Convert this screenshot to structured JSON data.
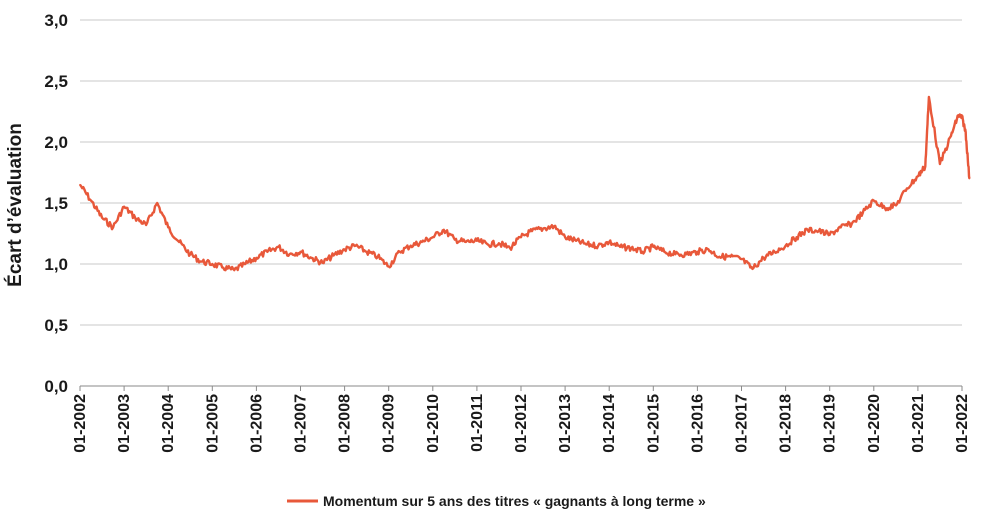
{
  "chart_data": {
    "type": "line",
    "title": "",
    "ylabel": "Écart d’évaluation",
    "xlabel": "",
    "ylim": [
      0,
      3.0
    ],
    "y_ticks": [
      {
        "value": 0,
        "label": "0,0"
      },
      {
        "value": 0.5,
        "label": "0,5"
      },
      {
        "value": 1.0,
        "label": "1,0"
      },
      {
        "value": 1.5,
        "label": "1,5"
      },
      {
        "value": 2.0,
        "label": "2,0"
      },
      {
        "value": 2.5,
        "label": "2,5"
      },
      {
        "value": 3.0,
        "label": "3,0"
      }
    ],
    "x_ticks": [
      "01-2002",
      "01-2003",
      "01-2004",
      "01-2005",
      "01-2006",
      "01-2007",
      "01-2008",
      "01-2009",
      "01-2010",
      "01-2011",
      "01-2012",
      "01-2013",
      "01-2014",
      "01-2015",
      "01-2016",
      "01-2017",
      "01-2018",
      "01-2019",
      "01-2020",
      "01-2021",
      "01-2022"
    ],
    "grid": true,
    "legend_position": "bottom-center",
    "series": [
      {
        "name": "Momentum sur 5 ans des titres « gagnants à long terme »",
        "color": "#E8583A",
        "x": [
          "01-2002",
          "04-2002",
          "07-2002",
          "10-2002",
          "01-2003",
          "04-2003",
          "07-2003",
          "10-2003",
          "01-2004",
          "04-2004",
          "07-2004",
          "10-2004",
          "01-2005",
          "04-2005",
          "07-2005",
          "10-2005",
          "01-2006",
          "04-2006",
          "07-2006",
          "10-2006",
          "01-2007",
          "04-2007",
          "07-2007",
          "10-2007",
          "01-2008",
          "04-2008",
          "07-2008",
          "10-2008",
          "01-2009",
          "04-2009",
          "07-2009",
          "10-2009",
          "01-2010",
          "04-2010",
          "07-2010",
          "10-2010",
          "01-2011",
          "04-2011",
          "07-2011",
          "10-2011",
          "01-2012",
          "04-2012",
          "07-2012",
          "10-2012",
          "01-2013",
          "04-2013",
          "07-2013",
          "10-2013",
          "01-2014",
          "04-2014",
          "07-2014",
          "10-2014",
          "01-2015",
          "04-2015",
          "07-2015",
          "10-2015",
          "01-2016",
          "04-2016",
          "07-2016",
          "10-2016",
          "01-2017",
          "04-2017",
          "07-2017",
          "10-2017",
          "01-2018",
          "04-2018",
          "07-2018",
          "10-2018",
          "01-2019",
          "04-2019",
          "07-2019",
          "10-2019",
          "01-2020",
          "04-2020",
          "07-2020",
          "10-2020",
          "01-2021",
          "03-2021",
          "04-2021",
          "07-2021",
          "10-2021",
          "12-2021",
          "01-2022",
          "02-2022",
          "03-2022"
        ],
        "values": [
          1.65,
          1.52,
          1.38,
          1.3,
          1.47,
          1.38,
          1.32,
          1.5,
          1.3,
          1.18,
          1.08,
          1.02,
          1.0,
          0.97,
          0.95,
          1.0,
          1.05,
          1.1,
          1.14,
          1.08,
          1.1,
          1.05,
          1.01,
          1.07,
          1.12,
          1.15,
          1.1,
          1.06,
          0.98,
          1.1,
          1.15,
          1.18,
          1.22,
          1.28,
          1.2,
          1.18,
          1.19,
          1.16,
          1.17,
          1.13,
          1.22,
          1.27,
          1.29,
          1.31,
          1.22,
          1.19,
          1.16,
          1.15,
          1.18,
          1.14,
          1.13,
          1.1,
          1.14,
          1.1,
          1.08,
          1.08,
          1.1,
          1.12,
          1.06,
          1.06,
          1.04,
          0.96,
          1.05,
          1.1,
          1.15,
          1.22,
          1.28,
          1.27,
          1.24,
          1.3,
          1.33,
          1.42,
          1.52,
          1.46,
          1.48,
          1.62,
          1.72,
          1.8,
          2.37,
          1.82,
          2.05,
          2.22,
          2.2,
          2.08,
          1.7
        ]
      }
    ]
  }
}
